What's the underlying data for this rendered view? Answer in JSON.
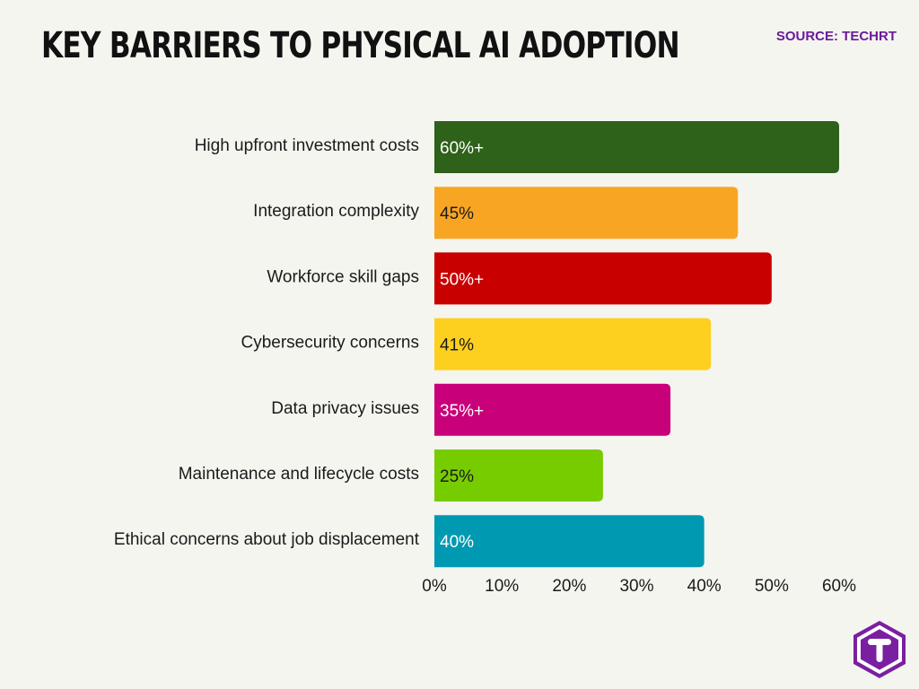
{
  "header": {
    "title": "KEY BARRIERS TO PHYSICAL AI ADOPTION",
    "source": "SOURCE: TECHRT"
  },
  "logo": {
    "icon": "techrt-t-logo-icon",
    "color": "#7b1fa2",
    "letter": "T"
  },
  "chart_data": {
    "type": "bar",
    "orientation": "horizontal",
    "categories": [
      "High upfront investment costs",
      "Integration complexity",
      "Workforce skill gaps",
      "Cybersecurity concerns",
      "Data privacy issues",
      "Maintenance and lifecycle costs",
      "Ethical concerns about job displacement"
    ],
    "values": [
      60,
      45,
      50,
      41,
      35,
      25,
      40
    ],
    "value_labels": [
      "60%+",
      "45%",
      "50%+",
      "41%",
      "35%+",
      "25%",
      "40%"
    ],
    "colors": [
      "#2e6119",
      "#f9a524",
      "#c90000",
      "#fdd01f",
      "#c8007a",
      "#77cc00",
      "#0099b2"
    ],
    "label_colors": [
      "#ffffff",
      "#1a1a1a",
      "#ffffff",
      "#1a1a1a",
      "#ffffff",
      "#1a1a1a",
      "#ffffff"
    ],
    "xticks": [
      "0%",
      "10%",
      "20%",
      "30%",
      "40%",
      "50%",
      "60%"
    ],
    "xlim": [
      0,
      60
    ],
    "title": "KEY BARRIERS TO PHYSICAL AI ADOPTION",
    "xlabel": "",
    "ylabel": "",
    "grid": false,
    "legend": "none"
  }
}
